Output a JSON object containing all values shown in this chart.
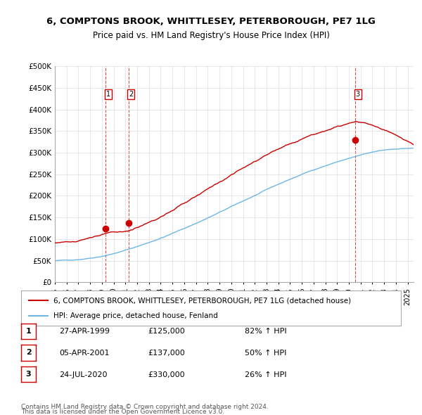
{
  "title_line1": "6, COMPTONS BROOK, WHITTLESEY, PETERBOROUGH, PE7 1LG",
  "title_line2": "Price paid vs. HM Land Registry's House Price Index (HPI)",
  "ylabel": "",
  "xlim_start": 1995.0,
  "xlim_end": 2025.5,
  "ylim_min": 0,
  "ylim_max": 500000,
  "yticks": [
    0,
    50000,
    100000,
    150000,
    200000,
    250000,
    300000,
    350000,
    400000,
    450000,
    500000
  ],
  "ytick_labels": [
    "£0",
    "£50K",
    "£100K",
    "£150K",
    "£200K",
    "£250K",
    "£300K",
    "£350K",
    "£400K",
    "£450K",
    "£500K"
  ],
  "sale_dates": [
    1999.32,
    2001.27,
    2020.56
  ],
  "sale_prices": [
    125000,
    137000,
    330000
  ],
  "sale_labels": [
    "1",
    "2",
    "3"
  ],
  "hpi_color": "#6eb6e8",
  "price_color": "#cc0000",
  "vline_color": "#cc0000",
  "legend_line1": "6, COMPTONS BROOK, WHITTLESEY, PETERBOROUGH, PE7 1LG (detached house)",
  "legend_line2": "HPI: Average price, detached house, Fenland",
  "table_entries": [
    {
      "num": "1",
      "date": "27-APR-1999",
      "price": "£125,000",
      "change": "82% ↑ HPI"
    },
    {
      "num": "2",
      "date": "05-APR-2001",
      "price": "£137,000",
      "change": "50% ↑ HPI"
    },
    {
      "num": "3",
      "date": "24-JUL-2020",
      "price": "£330,000",
      "change": "26% ↑ HPI"
    }
  ],
  "footnote1": "Contains HM Land Registry data © Crown copyright and database right 2024.",
  "footnote2": "This data is licensed under the Open Government Licence v3.0.",
  "background_color": "#ffffff",
  "grid_color": "#dddddd"
}
